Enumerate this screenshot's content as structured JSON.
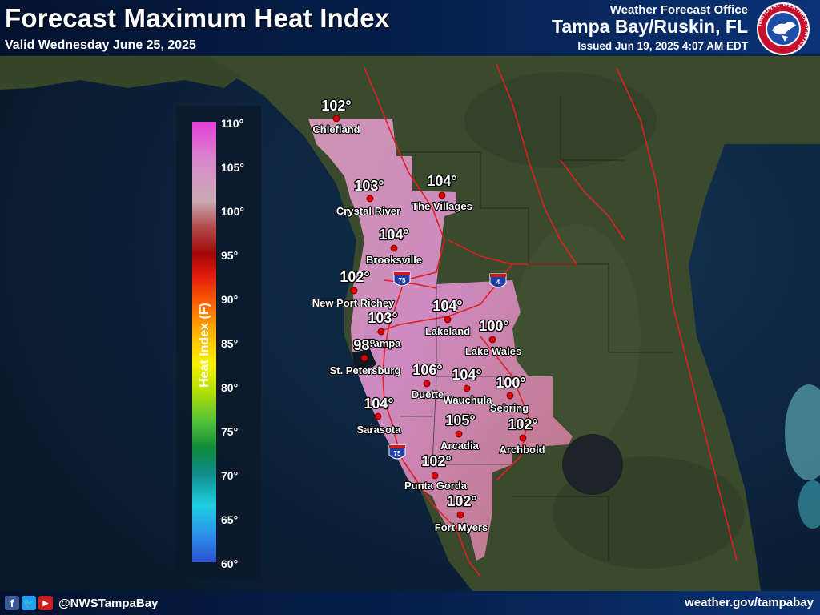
{
  "header": {
    "title": "Forecast Maximum Heat Index",
    "valid": "Valid Wednesday June 25, 2025",
    "office_line1": "Weather Forecast Office",
    "office_line2": "Tampa Bay/Ruskin, FL",
    "issued": "Issued Jun 19, 2025 4:07 AM EDT",
    "logo_text": "NATIONAL WEATHER SERVICE"
  },
  "legend": {
    "title": "Heat Index (F)",
    "labels": [
      "110°",
      "105°",
      "100°",
      "95°",
      "90°",
      "85°",
      "80°",
      "75°",
      "70°",
      "65°",
      "60°"
    ]
  },
  "highways": [
    "75",
    "4",
    "75"
  ],
  "cities": [
    {
      "name": "Chiefland",
      "value": "102°"
    },
    {
      "name": "Crystal River",
      "value": "103°"
    },
    {
      "name": "The Villages",
      "value": "104°"
    },
    {
      "name": "Brooksville",
      "value": "104°"
    },
    {
      "name": "New Port Richey",
      "value": "102°"
    },
    {
      "name": "Tampa",
      "value": "103°"
    },
    {
      "name": "Lakeland",
      "value": "104°"
    },
    {
      "name": "Lake Wales",
      "value": "100°"
    },
    {
      "name": "St. Petersburg",
      "value": "98°"
    },
    {
      "name": "Duette",
      "value": "106°"
    },
    {
      "name": "Wauchula",
      "value": "104°"
    },
    {
      "name": "Sebring",
      "value": "100°"
    },
    {
      "name": "Sarasota",
      "value": "104°"
    },
    {
      "name": "Arcadia",
      "value": "105°"
    },
    {
      "name": "Archbold",
      "value": "102°"
    },
    {
      "name": "Punta Gorda",
      "value": "102°"
    },
    {
      "name": "Fort Myers",
      "value": "102°"
    }
  ],
  "footer": {
    "handle": "@NWSTampaBay",
    "site": "weather.gov/tampabay",
    "icons": [
      "facebook-icon",
      "twitter-icon",
      "youtube-icon"
    ]
  },
  "colors": {
    "ocean": "#0c2036",
    "land": "#37482c",
    "heat_high": "#d893c8",
    "heat_mid": "#c97b86",
    "city_dot": "#e00000",
    "header_bg": "#06214f"
  }
}
